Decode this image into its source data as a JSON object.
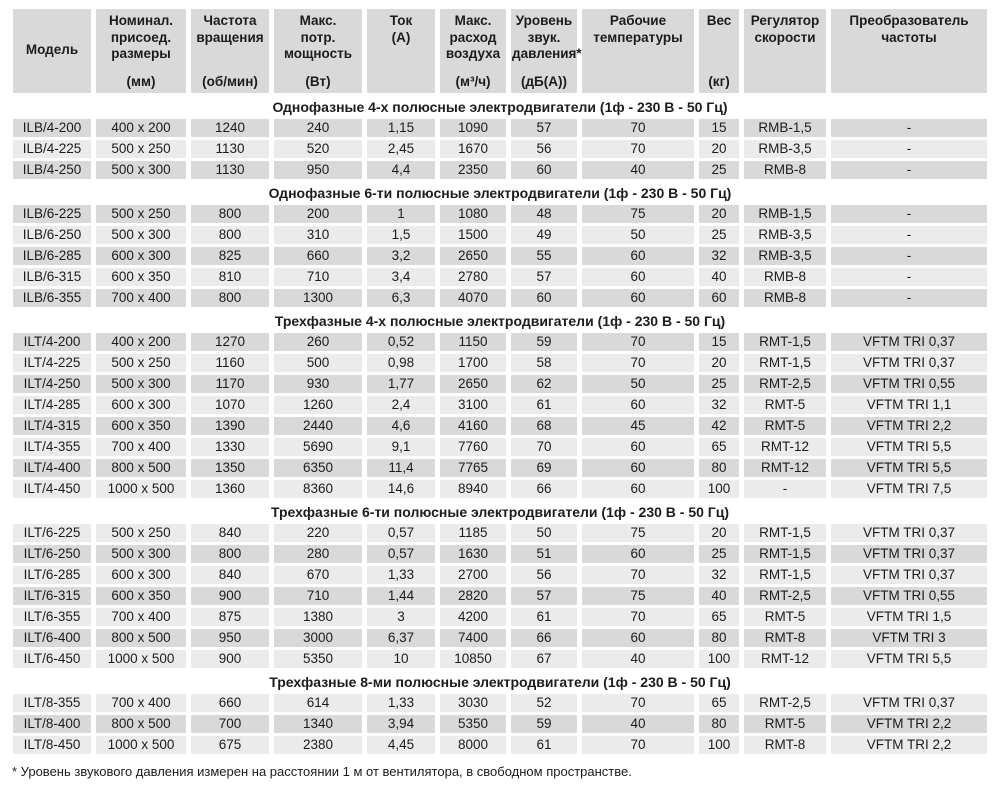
{
  "colors": {
    "row_dark": "#d9d9d9",
    "row_light": "#ebebeb",
    "header_bg": "#d9d9d9",
    "text": "#1c1c1c"
  },
  "table": {
    "columns": [
      {
        "key": "model",
        "label": "Модель",
        "unit": "",
        "align": "center"
      },
      {
        "key": "dims",
        "label": "Номинал.\nприсоед.\nразмеры",
        "unit": "(мм)",
        "align": "top"
      },
      {
        "key": "rpm",
        "label": "Частота\nвращения",
        "unit": "(об/мин)",
        "align": "top"
      },
      {
        "key": "power",
        "label": "Макс.\nпотр.\nмощность",
        "unit": "(Вт)",
        "align": "top"
      },
      {
        "key": "current",
        "label": "Ток\n(А)",
        "unit": "",
        "align": "top"
      },
      {
        "key": "airflow",
        "label": "Макс.\nрасход\nвоздуха",
        "unit": "(м³/ч)",
        "align": "top"
      },
      {
        "key": "sound",
        "label": "Уровень\nзвук.\nдавления*",
        "unit": "(дБ(А))",
        "align": "top"
      },
      {
        "key": "temp",
        "label": "Рабочие\nтемпературы",
        "unit": "",
        "align": "top"
      },
      {
        "key": "weight",
        "label": "Вес",
        "unit": "(кг)",
        "align": "top"
      },
      {
        "key": "regulator",
        "label": "Регулятор\nскорости",
        "unit": "",
        "align": "top"
      },
      {
        "key": "converter",
        "label": "Преобразователь\nчастоты",
        "unit": "",
        "align": "top"
      }
    ],
    "sections": [
      {
        "title": "Однофазные 4-х полюсные электродвигатели (1ф - 230 В - 50 Гц)",
        "start_shade": "dark",
        "rows": [
          [
            "ILB/4-200",
            "400 x 200",
            "1240",
            "240",
            "1,15",
            "1090",
            "57",
            "70",
            "15",
            "RMB-1,5",
            "-"
          ],
          [
            "ILB/4-225",
            "500 x 250",
            "1130",
            "520",
            "2,45",
            "1670",
            "56",
            "70",
            "20",
            "RMB-3,5",
            "-"
          ],
          [
            "ILB/4-250",
            "500 x 300",
            "1130",
            "950",
            "4,4",
            "2350",
            "60",
            "40",
            "25",
            "RMB-8",
            "-"
          ]
        ]
      },
      {
        "title": "Однофазные 6-ти полюсные электродвигатели (1ф - 230 В - 50 Гц)",
        "start_shade": "dark",
        "rows": [
          [
            "ILB/6-225",
            "500 x 250",
            "800",
            "200",
            "1",
            "1080",
            "48",
            "75",
            "20",
            "RMB-1,5",
            "-"
          ],
          [
            "ILB/6-250",
            "500 x 300",
            "800",
            "310",
            "1,5",
            "1500",
            "49",
            "50",
            "25",
            "RMB-3,5",
            "-"
          ],
          [
            "ILB/6-285",
            "600 x 300",
            "825",
            "660",
            "3,2",
            "2650",
            "55",
            "60",
            "32",
            "RMB-3,5",
            "-"
          ],
          [
            "ILB/6-315",
            "600 x 350",
            "810",
            "710",
            "3,4",
            "2780",
            "57",
            "60",
            "40",
            "RMB-8",
            "-"
          ],
          [
            "ILB/6-355",
            "700 x 400",
            "800",
            "1300",
            "6,3",
            "4070",
            "60",
            "60",
            "60",
            "RMB-8",
            "-"
          ]
        ]
      },
      {
        "title": "Трехфазные 4-х полюсные электродвигатели (1ф - 230 В - 50 Гц)",
        "start_shade": "dark",
        "rows": [
          [
            "ILT/4-200",
            "400 x 200",
            "1270",
            "260",
            "0,52",
            "1150",
            "59",
            "70",
            "15",
            "RMT-1,5",
            "VFTM TRI 0,37"
          ],
          [
            "ILT/4-225",
            "500 x 250",
            "1160",
            "500",
            "0,98",
            "1700",
            "58",
            "70",
            "20",
            "RMT-1,5",
            "VFTM TRI 0,37"
          ],
          [
            "ILT/4-250",
            "500 x 300",
            "1170",
            "930",
            "1,77",
            "2650",
            "62",
            "50",
            "25",
            "RMT-2,5",
            "VFTM TRI 0,55"
          ],
          [
            "ILT/4-285",
            "600 x 300",
            "1070",
            "1260",
            "2,4",
            "3100",
            "61",
            "60",
            "32",
            "RMT-5",
            "VFTM TRI 1,1"
          ],
          [
            "ILT/4-315",
            "600 x 350",
            "1390",
            "2440",
            "4,6",
            "4160",
            "68",
            "45",
            "42",
            "RMT-5",
            "VFTM TRI 2,2"
          ],
          [
            "ILT/4-355",
            "700 x 400",
            "1330",
            "5690",
            "9,1",
            "7760",
            "70",
            "60",
            "65",
            "RMT-12",
            "VFTM TRI 5,5"
          ],
          [
            "ILT/4-400",
            "800 x 500",
            "1350",
            "6350",
            "11,4",
            "7765",
            "69",
            "60",
            "80",
            "RMT-12",
            "VFTM TRI 5,5"
          ],
          [
            "ILT/4-450",
            "1000 x 500",
            "1360",
            "8360",
            "14,6",
            "8940",
            "66",
            "60",
            "100",
            "-",
            "VFTM TRI 7,5"
          ]
        ]
      },
      {
        "title": "Трехфазные 6-ти полюсные электродвигатели (1ф - 230 В - 50 Гц)",
        "start_shade": "light",
        "rows": [
          [
            "ILT/6-225",
            "500 x 250",
            "840",
            "220",
            "0,57",
            "1185",
            "50",
            "75",
            "20",
            "RMT-1,5",
            "VFTM TRI 0,37"
          ],
          [
            "ILT/6-250",
            "500 x 300",
            "800",
            "280",
            "0,57",
            "1630",
            "51",
            "60",
            "25",
            "RMT-1,5",
            "VFTM TRI 0,37"
          ],
          [
            "ILT/6-285",
            "600 x 300",
            "840",
            "670",
            "1,33",
            "2700",
            "56",
            "70",
            "32",
            "RMT-1,5",
            "VFTM TRI 0,37"
          ],
          [
            "ILT/6-315",
            "600 x 350",
            "900",
            "710",
            "1,44",
            "2820",
            "57",
            "75",
            "40",
            "RMT-2,5",
            "VFTM TRI 0,55"
          ],
          [
            "ILT/6-355",
            "700 x 400",
            "875",
            "1380",
            "3",
            "4200",
            "61",
            "70",
            "65",
            "RMT-5",
            "VFTM TRI 1,5"
          ],
          [
            "ILT/6-400",
            "800 x 500",
            "950",
            "3000",
            "6,37",
            "7400",
            "66",
            "60",
            "80",
            "RMT-8",
            "VFTM TRI 3"
          ],
          [
            "ILT/6-450",
            "1000 x 500",
            "900",
            "5350",
            "10",
            "10850",
            "67",
            "40",
            "100",
            "RMT-12",
            "VFTM TRI 5,5"
          ]
        ]
      },
      {
        "title": "Трехфазные 8-ми полюсные электродвигатели (1ф - 230 В - 50 Гц)",
        "start_shade": "light",
        "rows": [
          [
            "ILT/8-355",
            "700 x 400",
            "660",
            "614",
            "1,33",
            "3030",
            "52",
            "70",
            "65",
            "RMT-2,5",
            "VFTM TRI 0,37"
          ],
          [
            "ILT/8-400",
            "800 x 500",
            "700",
            "1340",
            "3,94",
            "5350",
            "59",
            "40",
            "80",
            "RMT-5",
            "VFTM TRI 2,2"
          ],
          [
            "ILT/8-450",
            "1000 x 500",
            "675",
            "2380",
            "4,45",
            "8000",
            "61",
            "70",
            "100",
            "RMT-8",
            "VFTM TRI 2,2"
          ]
        ]
      }
    ],
    "footnote": "* Уровень звукового давления измерен на расстоянии 1 м от вентилятора, в свободном пространстве."
  }
}
